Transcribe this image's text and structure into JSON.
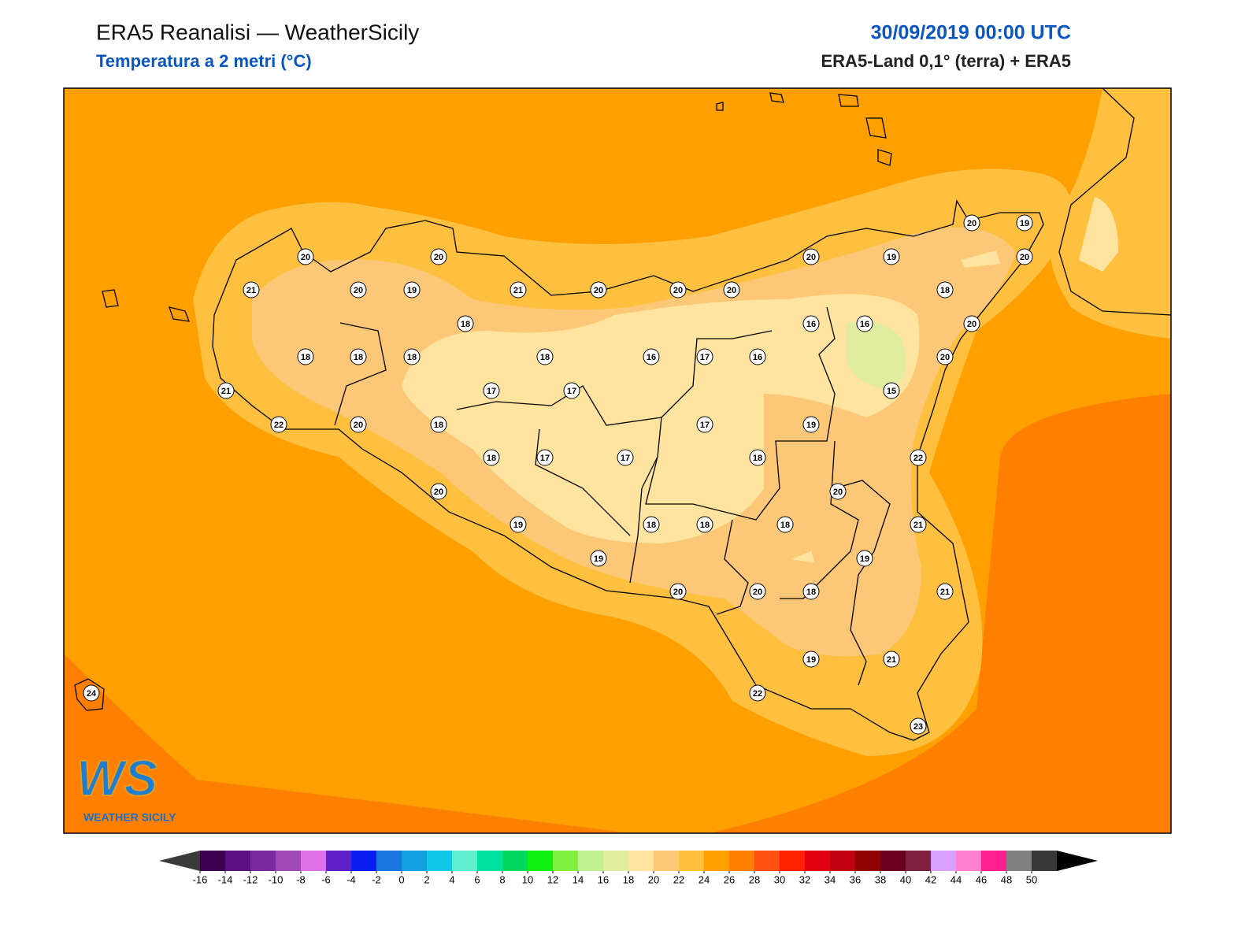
{
  "header": {
    "title": "ERA5 Reanalisi — WeatherSicily",
    "subtitle": "Temperatura a 2 metri (°C)",
    "datetime": "30/09/2019 00:00 UTC",
    "source": "ERA5-Land 0,1° (terra) + ERA5"
  },
  "map": {
    "stations": [
      20,
      20,
      21,
      20,
      19,
      21,
      20,
      20,
      20,
      18,
      18,
      18,
      18,
      18,
      16,
      17,
      16,
      21,
      17,
      17,
      22,
      20,
      18,
      17,
      19,
      18,
      17,
      17,
      18,
      20,
      19,
      18,
      18,
      18,
      19,
      20,
      20,
      18,
      19,
      22,
      24,
      20,
      19,
      20,
      19,
      20,
      18,
      16,
      16,
      20,
      20,
      15,
      22,
      20,
      21,
      19,
      21,
      21,
      23
    ]
  },
  "colorbar": {
    "ticks": [
      -16,
      -14,
      -12,
      -10,
      -8,
      -6,
      -4,
      -2,
      0,
      2,
      4,
      6,
      8,
      10,
      12,
      14,
      16,
      18,
      20,
      22,
      24,
      26,
      28,
      30,
      32,
      34,
      36,
      38,
      40,
      42,
      44,
      46,
      48,
      50
    ],
    "colors": [
      "#3b0050",
      "#5a1080",
      "#7a2aa0",
      "#a048b8",
      "#e070e8",
      "#6020c8",
      "#0a1ef0",
      "#1a78e0",
      "#10a0e0",
      "#10c8e8",
      "#60f0d0",
      "#00e0a0",
      "#00d860",
      "#10f010",
      "#80f040",
      "#c0f090",
      "#e0eca0",
      "#ffe4a0",
      "#fcc878",
      "#ffc040",
      "#ffa000",
      "#ff7f00",
      "#ff5010",
      "#ff2000",
      "#e00010",
      "#c00010",
      "#900000",
      "#6a0020",
      "#802040",
      "#d8a0ff",
      "#ff80d0",
      "#ff2090",
      "#808080",
      "#383838"
    ],
    "under_color": "#3a3a3a",
    "over_color": "#000000"
  },
  "logo": {
    "mark": "WS",
    "name": "WEATHER SICILY"
  }
}
